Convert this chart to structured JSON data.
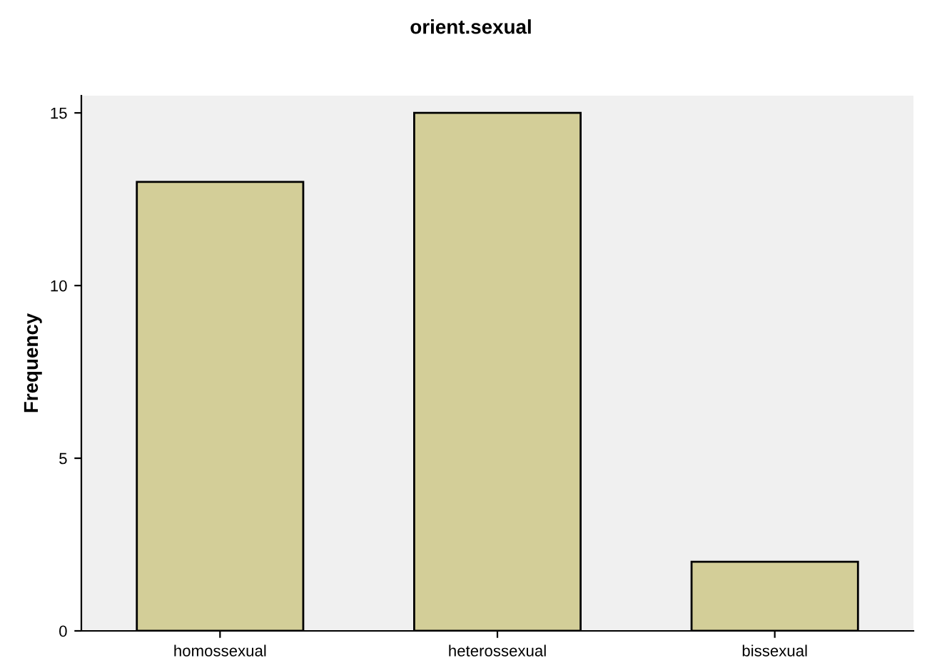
{
  "chart_data": {
    "type": "bar",
    "title": "orient.sexual",
    "ylabel": "Frequency",
    "categories": [
      "homossexual",
      "heterossexual",
      "bissexual"
    ],
    "values": [
      13,
      15,
      2
    ],
    "color": "#d3ce98",
    "ylim": [
      0,
      15.5
    ],
    "yticks": [
      0,
      5,
      10,
      15
    ],
    "grid": false
  }
}
